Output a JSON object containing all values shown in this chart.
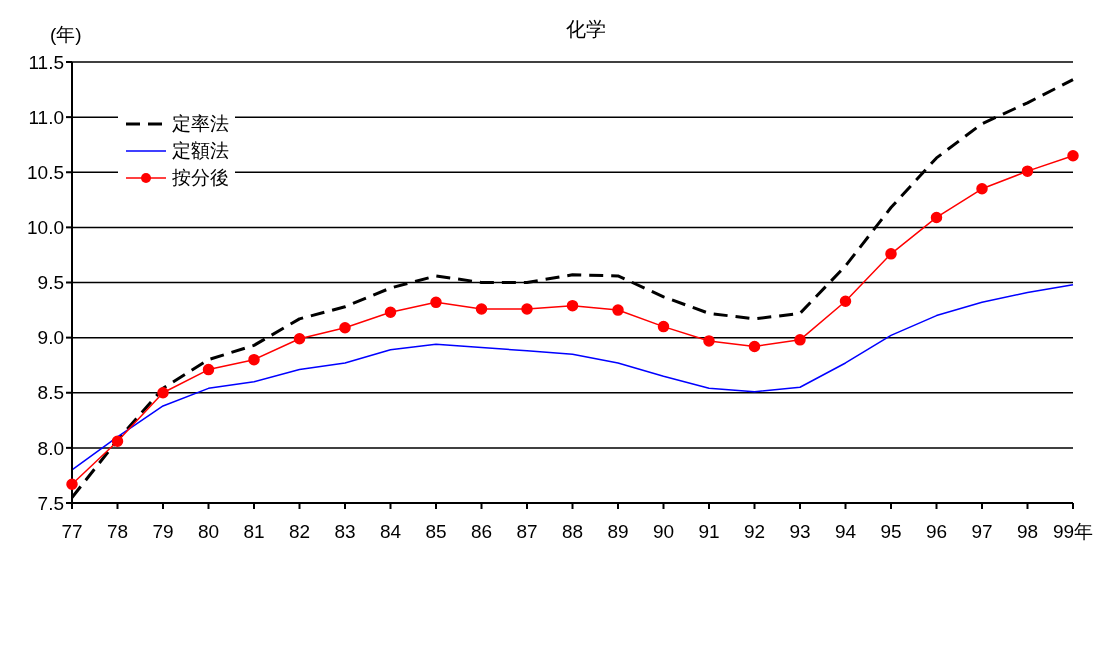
{
  "chart_data": {
    "type": "line",
    "title": "化学",
    "ylabel": "(年)",
    "categories": [
      "77",
      "78",
      "79",
      "80",
      "81",
      "82",
      "83",
      "84",
      "85",
      "86",
      "87",
      "88",
      "89",
      "90",
      "91",
      "92",
      "93",
      "94",
      "95",
      "96",
      "97",
      "98",
      "99年"
    ],
    "series": [
      {
        "name": "定率法",
        "color": "#000000",
        "line_style": "dashed",
        "marker": "none",
        "values": [
          7.55,
          8.07,
          8.54,
          8.8,
          8.93,
          9.17,
          9.28,
          9.45,
          9.56,
          9.5,
          9.5,
          9.57,
          9.56,
          9.37,
          9.22,
          9.17,
          9.22,
          9.65,
          10.18,
          10.63,
          10.94,
          11.13,
          11.34
        ]
      },
      {
        "name": "定額法",
        "color": "#0000ff",
        "line_style": "solid",
        "marker": "none",
        "values": [
          7.8,
          8.1,
          8.38,
          8.54,
          8.6,
          8.71,
          8.77,
          8.89,
          8.94,
          8.91,
          8.88,
          8.85,
          8.77,
          8.65,
          8.54,
          8.51,
          8.55,
          8.77,
          9.02,
          9.2,
          9.32,
          9.41,
          9.48
        ]
      },
      {
        "name": "按分後",
        "color": "#ff0000",
        "line_style": "solid",
        "marker": "circle",
        "values": [
          7.67,
          8.06,
          8.5,
          8.71,
          8.8,
          8.99,
          9.09,
          9.23,
          9.32,
          9.26,
          9.26,
          9.29,
          9.25,
          9.1,
          8.97,
          8.92,
          8.98,
          9.33,
          9.76,
          10.09,
          10.35,
          10.51,
          10.65
        ]
      }
    ],
    "ylim": [
      7.5,
      11.5
    ],
    "yticks": [
      {
        "value": 7.5,
        "label": "7.5"
      },
      {
        "value": 8,
        "label": "8.0"
      },
      {
        "value": 8.5,
        "label": "8.5"
      },
      {
        "value": 9,
        "label": "9.0"
      },
      {
        "value": 9.5,
        "label": "9.5"
      },
      {
        "value": 10,
        "label": "10.0"
      },
      {
        "value": 10.5,
        "label": "10.5"
      },
      {
        "value": 11,
        "label": "11.0"
      },
      {
        "value": 11.5,
        "label": "11.5"
      }
    ],
    "grid": "y",
    "legend": "top left"
  }
}
